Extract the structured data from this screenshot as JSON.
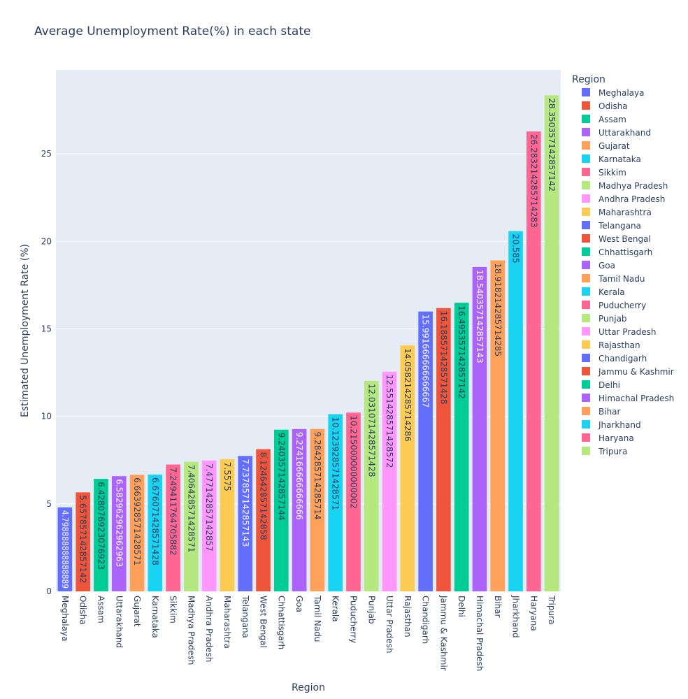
{
  "chart_data": {
    "type": "bar",
    "title": "Average Unemployment Rate(%) in each state",
    "xlabel": "Region",
    "ylabel": "Estimated Unemployment Rate (%)",
    "ylim": [
      0,
      29.8
    ],
    "yticks": [
      0,
      5,
      10,
      15,
      20,
      25
    ],
    "grid": true,
    "legend_title": "Region",
    "legend_position": "right",
    "categories": [
      "Meghalaya",
      "Odisha",
      "Assam",
      "Uttarakhand",
      "Gujarat",
      "Karnataka",
      "Sikkim",
      "Madhya Pradesh",
      "Andhra Pradesh",
      "Maharashtra",
      "Telangana",
      "West Bengal",
      "Chhattisgarh",
      "Goa",
      "Tamil Nadu",
      "Kerala",
      "Puducherry",
      "Punjab",
      "Uttar Pradesh",
      "Rajasthan",
      "Chandigarh",
      "Jammu & Kashmir",
      "Delhi",
      "Himachal Pradesh",
      "Bihar",
      "Jharkhand",
      "Haryana",
      "Tripura"
    ],
    "values": [
      4.798888888888889,
      5.657857142857142,
      6.428076923076923,
      6.582962962962963,
      6.663928571428571,
      6.676071428571428,
      7.249411764705882,
      7.406428571428571,
      7.477142857142857,
      7.5575,
      7.737857142857143,
      8.124642857142858,
      9.240357142857144,
      9.274166666666666,
      9.284285714285714,
      10.123928571428571,
      10.215000000000002,
      12.031071428571428,
      12.551428571428572,
      14.058214285714286,
      15.991666666666667,
      16.18857142857143,
      16.49535714285714,
      18.540357142857143,
      18.918214285714285,
      20.585,
      26.283214285714283,
      28.350357142857142
    ],
    "labels": [
      "4.798888888888889",
      "5.657857142857142",
      "6.428076923076923",
      "6.582962962962963",
      "6.663928571428571",
      "6.676071428571428",
      "7.249411764705882",
      "7.406428571428571",
      "7.477142857142857",
      "7.5575",
      "7.737857142857143",
      "8.124642857142858",
      "9.240357142857144",
      "9.274166666666666",
      "9.284285714285714",
      "10.123928571428571",
      "10.215000000000002",
      "12.031071428571428",
      "12.551428571428572",
      "14.058214285714286",
      "15.991666666666667",
      "16.188571428571428",
      "16.495357142857142",
      "18.540357142857143",
      "18.918214285714285",
      "20.585",
      "26.283214285714283",
      "28.350357142857142"
    ],
    "colors": [
      "#636efa",
      "#EF553B",
      "#00cc96",
      "#ab63fa",
      "#FFA15A",
      "#19d3f3",
      "#FF6692",
      "#B6E880",
      "#FF97FF",
      "#FECB52",
      "#636efa",
      "#EF553B",
      "#00cc96",
      "#ab63fa",
      "#FFA15A",
      "#19d3f3",
      "#FF6692",
      "#B6E880",
      "#FF97FF",
      "#FECB52",
      "#636efa",
      "#EF553B",
      "#00cc96",
      "#ab63fa",
      "#FFA15A",
      "#19d3f3",
      "#FF6692",
      "#B6E880"
    ],
    "plot_background": "#E5ECF6",
    "gridline_color": "#ffffff",
    "label_dark_text": "#2a3f5f",
    "label_light_text": "#ffffff"
  }
}
